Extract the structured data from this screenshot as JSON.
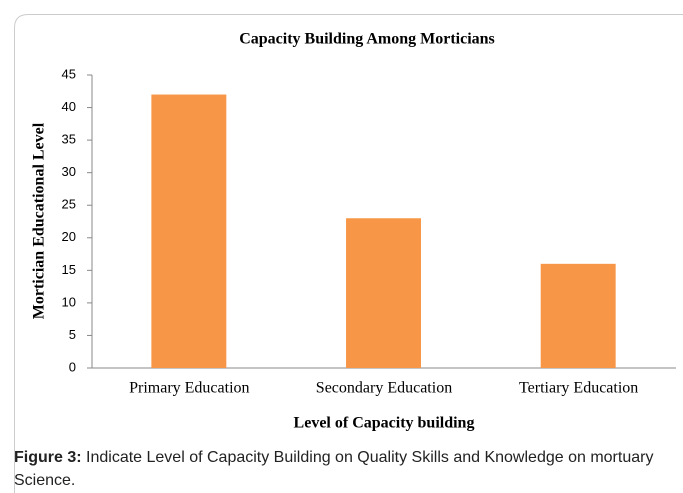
{
  "chart_data": {
    "type": "bar",
    "title": "Capacity Building Among Morticians",
    "x_label": "Level of Capacity building",
    "y_label": "Mortician Educational Level",
    "categories": [
      "Primary Education",
      "Secondary Education",
      "Tertiary Education"
    ],
    "values": [
      42,
      23,
      16
    ],
    "color": "#f79646",
    "ylim": [
      0,
      45
    ],
    "yticks": [
      0,
      5,
      10,
      15,
      20,
      25,
      30,
      35,
      40,
      45
    ]
  },
  "caption": {
    "label": "Figure 3:",
    "text": "Indicate Level of Capacity Building on Quality Skills and Knowledge on mortuary Science."
  }
}
